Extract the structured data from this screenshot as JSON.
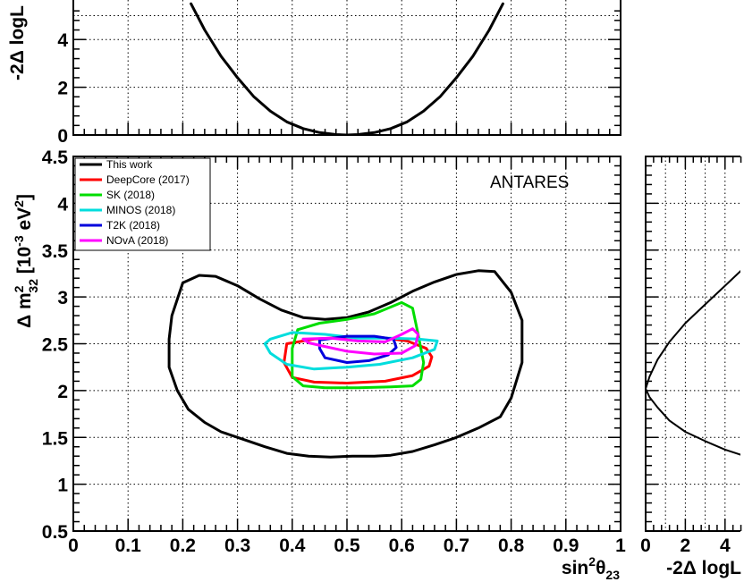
{
  "chart_data": [
    {
      "name": "top-profile",
      "type": "line",
      "xlim": [
        0,
        1
      ],
      "ylim": [
        0,
        5.5
      ],
      "x_ticks": [
        0,
        0.1,
        0.2,
        0.3,
        0.4,
        0.5,
        0.6,
        0.7,
        0.8,
        0.9,
        1
      ],
      "y_ticks": [
        0,
        2,
        4
      ],
      "y_tick_labels": [
        "0",
        "2",
        "4"
      ],
      "ylabel_text": "-2Δ logL",
      "grid": true,
      "series": [
        {
          "color": "#000000",
          "x": [
            0.215,
            0.24,
            0.27,
            0.3,
            0.33,
            0.36,
            0.39,
            0.42,
            0.45,
            0.48,
            0.5,
            0.52,
            0.55,
            0.58,
            0.61,
            0.64,
            0.67,
            0.7,
            0.73,
            0.76,
            0.785
          ],
          "y": [
            5.5,
            4.4,
            3.3,
            2.4,
            1.6,
            1.0,
            0.55,
            0.27,
            0.1,
            0.02,
            0.0,
            0.02,
            0.1,
            0.27,
            0.55,
            1.0,
            1.6,
            2.4,
            3.3,
            4.4,
            5.5
          ]
        }
      ]
    },
    {
      "name": "main-contours",
      "type": "line",
      "xlim": [
        0,
        1
      ],
      "ylim": [
        0.5,
        4.5
      ],
      "x_ticks": [
        0,
        0.1,
        0.2,
        0.3,
        0.4,
        0.5,
        0.6,
        0.7,
        0.8,
        0.9,
        1
      ],
      "x_tick_labels": [
        "0",
        "0.1",
        "0.2",
        "0.3",
        "0.4",
        "0.5",
        "0.6",
        "0.7",
        "0.8",
        "0.9",
        "1"
      ],
      "y_ticks": [
        0.5,
        1,
        1.5,
        2,
        2.5,
        3,
        3.5,
        4,
        4.5
      ],
      "y_tick_labels": [
        "0.5",
        "1",
        "1.5",
        "2",
        "2.5",
        "3",
        "3.5",
        "4",
        "4.5"
      ],
      "xlabel_text": "sin²θ₂₃",
      "ylabel_text": "Δ m²₃₂ [10⁻³ eV²]",
      "annotation": "ANTARES",
      "legend_position": "top-left",
      "grid": true,
      "series": [
        {
          "name": "This work",
          "color": "#000000",
          "x": [
            0.2,
            0.23,
            0.26,
            0.3,
            0.34,
            0.38,
            0.42,
            0.46,
            0.5,
            0.54,
            0.58,
            0.62,
            0.66,
            0.7,
            0.74,
            0.77,
            0.8,
            0.82,
            0.82,
            0.8,
            0.78,
            0.74,
            0.7,
            0.66,
            0.62,
            0.58,
            0.55,
            0.51,
            0.47,
            0.43,
            0.39,
            0.35,
            0.31,
            0.27,
            0.24,
            0.21,
            0.19,
            0.175,
            0.175,
            0.18,
            0.2
          ],
          "y": [
            3.15,
            3.23,
            3.22,
            3.12,
            2.98,
            2.86,
            2.78,
            2.76,
            2.78,
            2.84,
            2.94,
            3.06,
            3.16,
            3.24,
            3.28,
            3.27,
            3.05,
            2.75,
            2.3,
            1.92,
            1.72,
            1.6,
            1.5,
            1.42,
            1.35,
            1.31,
            1.3,
            1.3,
            1.29,
            1.3,
            1.33,
            1.4,
            1.48,
            1.56,
            1.66,
            1.8,
            2.0,
            2.25,
            2.55,
            2.8,
            3.15
          ]
        },
        {
          "name": "DeepCore (2017)",
          "color": "#ff0000",
          "x": [
            0.39,
            0.44,
            0.5,
            0.56,
            0.61,
            0.645,
            0.655,
            0.65,
            0.62,
            0.57,
            0.5,
            0.44,
            0.4,
            0.385,
            0.39
          ],
          "y": [
            2.5,
            2.55,
            2.57,
            2.57,
            2.53,
            2.45,
            2.36,
            2.26,
            2.16,
            2.1,
            2.08,
            2.09,
            2.14,
            2.3,
            2.5
          ]
        },
        {
          "name": "SK (2018)",
          "color": "#00dd00",
          "x": [
            0.41,
            0.45,
            0.5,
            0.55,
            0.6,
            0.62,
            0.63,
            0.64,
            0.635,
            0.62,
            0.58,
            0.52,
            0.46,
            0.42,
            0.4,
            0.4,
            0.41
          ],
          "y": [
            2.65,
            2.72,
            2.76,
            2.82,
            2.94,
            2.88,
            2.6,
            2.3,
            2.12,
            2.05,
            2.04,
            2.03,
            2.03,
            2.05,
            2.15,
            2.45,
            2.65
          ]
        },
        {
          "name": "MINOS (2018)",
          "color": "#00dddd",
          "x": [
            0.36,
            0.4,
            0.46,
            0.52,
            0.58,
            0.63,
            0.665,
            0.66,
            0.62,
            0.56,
            0.5,
            0.44,
            0.39,
            0.36,
            0.35,
            0.36
          ],
          "y": [
            2.55,
            2.62,
            2.6,
            2.56,
            2.56,
            2.55,
            2.53,
            2.44,
            2.35,
            2.28,
            2.25,
            2.23,
            2.28,
            2.4,
            2.5,
            2.55
          ]
        },
        {
          "name": "T2K (2018)",
          "color": "#0000dd",
          "x": [
            0.45,
            0.5,
            0.55,
            0.585,
            0.59,
            0.575,
            0.54,
            0.5,
            0.46,
            0.45,
            0.45
          ],
          "y": [
            2.54,
            2.58,
            2.58,
            2.55,
            2.46,
            2.38,
            2.32,
            2.3,
            2.35,
            2.45,
            2.54
          ]
        },
        {
          "name": "NOvA (2018)",
          "color": "#ff00ff",
          "x": [
            0.42,
            0.47,
            0.52,
            0.57,
            0.6,
            0.62,
            0.63,
            0.625,
            0.6,
            0.55,
            0.5,
            0.46,
            0.43,
            0.42
          ],
          "y": [
            2.55,
            2.56,
            2.53,
            2.52,
            2.6,
            2.66,
            2.6,
            2.48,
            2.4,
            2.39,
            2.42,
            2.47,
            2.51,
            2.55
          ]
        }
      ]
    },
    {
      "name": "right-profile",
      "type": "line",
      "xlim": [
        0,
        5
      ],
      "ylim": [
        0.5,
        4.5
      ],
      "x_ticks": [
        0,
        2,
        4
      ],
      "x_tick_labels": [
        "0",
        "2",
        "4"
      ],
      "xlabel_text": "-2Δ logL",
      "grid": true,
      "series": [
        {
          "color": "#000000",
          "x": [
            5.0,
            4.0,
            3.0,
            2.0,
            1.2,
            0.6,
            0.2,
            0.0,
            0.2,
            0.6,
            1.2,
            2.0,
            3.0,
            4.0,
            5.0
          ],
          "y": [
            1.3,
            1.37,
            1.46,
            1.56,
            1.68,
            1.82,
            1.93,
            2.02,
            2.15,
            2.33,
            2.52,
            2.72,
            2.92,
            3.12,
            3.32
          ]
        }
      ]
    }
  ]
}
